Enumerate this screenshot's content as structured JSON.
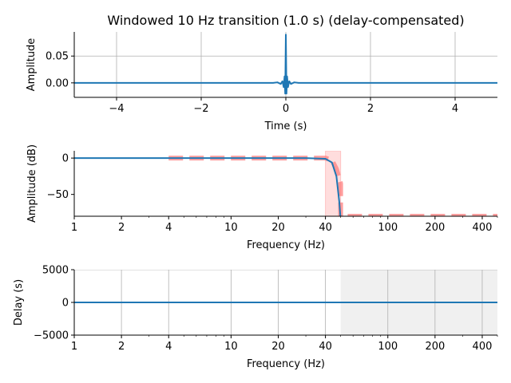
{
  "title": "Windowed 10 Hz transition (1.0 s) (delay-compensated)",
  "chart_data": [
    {
      "type": "line",
      "panel": "impulse",
      "xlabel": "Time (s)",
      "ylabel": "Amplitude",
      "xlim": [
        -5,
        5
      ],
      "ylim": [
        -0.027,
        0.095
      ],
      "x_ticks": [
        -4,
        -2,
        0,
        2,
        4
      ],
      "x_tick_labels": [
        "−4",
        "−2",
        "0",
        "2",
        "4"
      ],
      "y_ticks": [
        0.0,
        0.05
      ],
      "y_tick_labels": [
        "0.00",
        "0.05"
      ],
      "grid": true,
      "series": [
        {
          "color": "#1f77b4",
          "x": [
            -5,
            -0.3,
            -0.2,
            -0.12,
            -0.08,
            -0.05,
            -0.03,
            -0.015,
            0,
            0.015,
            0.03,
            0.05,
            0.08,
            0.12,
            0.2,
            0.3,
            5
          ],
          "y": [
            0,
            0,
            0.001,
            -0.002,
            0.003,
            -0.008,
            0.012,
            -0.02,
            0.09,
            -0.02,
            0.012,
            -0.008,
            0.003,
            -0.002,
            0.001,
            0,
            0
          ]
        }
      ]
    },
    {
      "type": "line",
      "panel": "magnitude",
      "xscale": "log",
      "xlabel": "Frequency (Hz)",
      "ylabel": "Amplitude (dB)",
      "xlim": [
        1,
        500
      ],
      "ylim": [
        -80,
        10
      ],
      "x_ticks": [
        1,
        2,
        4,
        10,
        20,
        40,
        100,
        200,
        400
      ],
      "x_tick_labels": [
        "1",
        "2",
        "4",
        "10",
        "20",
        "40",
        "100",
        "200",
        "400"
      ],
      "y_ticks": [
        0,
        -50
      ],
      "y_tick_labels": [
        "0",
        "−50"
      ],
      "grid": false,
      "transition_band": [
        40,
        50
      ],
      "series": [
        {
          "role": "ideal",
          "color": "#ff7f7f",
          "dashed": true,
          "x": [
            4,
            40,
            44,
            47,
            50,
            50,
            500
          ],
          "y": [
            0,
            0,
            -3,
            -15,
            -35,
            -80,
            -80
          ]
        },
        {
          "role": "actual",
          "color": "#1f77b4",
          "x": [
            1,
            30,
            40,
            44,
            47,
            49,
            50
          ],
          "y": [
            0,
            0,
            -1,
            -6,
            -25,
            -60,
            -85
          ]
        }
      ]
    },
    {
      "type": "line",
      "panel": "delay",
      "xscale": "log",
      "xlabel": "Frequency (Hz)",
      "ylabel": "Delay (s)",
      "xlim": [
        1,
        500
      ],
      "ylim": [
        -5000,
        5000
      ],
      "x_ticks": [
        1,
        2,
        4,
        10,
        20,
        40,
        100,
        200,
        400
      ],
      "x_tick_labels": [
        "1",
        "2",
        "4",
        "10",
        "20",
        "40",
        "100",
        "200",
        "400"
      ],
      "y_ticks": [
        5000,
        0,
        -5000
      ],
      "y_tick_labels": [
        "5000",
        "0",
        "−5000"
      ],
      "grid": true,
      "stopband_start": 50,
      "series": [
        {
          "color": "#1f77b4",
          "x": [
            1,
            500
          ],
          "y": [
            0,
            0
          ]
        }
      ]
    }
  ]
}
